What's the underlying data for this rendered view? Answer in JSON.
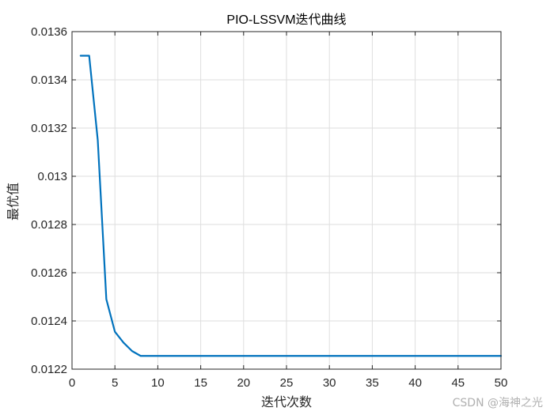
{
  "chart_data": {
    "type": "line",
    "title": "PIO-LSSVM迭代曲线",
    "xlabel": "迭代次数",
    "ylabel": "最优值",
    "xlim": [
      0,
      50
    ],
    "ylim": [
      0.0122,
      0.0136
    ],
    "xticks": [
      "0",
      "5",
      "10",
      "15",
      "20",
      "25",
      "30",
      "35",
      "40",
      "45",
      "50"
    ],
    "yticks": [
      "0.0122",
      "0.0124",
      "0.0126",
      "0.0128",
      "0.013",
      "0.0132",
      "0.0134",
      "0.0136"
    ],
    "grid": true,
    "series": [
      {
        "color": "#0072bd",
        "x": [
          1,
          2,
          3,
          4,
          5,
          6,
          7,
          8,
          9,
          10,
          15,
          20,
          25,
          30,
          35,
          40,
          45,
          50
        ],
        "y": [
          0.0135,
          0.0135,
          0.01315,
          0.01249,
          0.012355,
          0.01231,
          0.012275,
          0.012255,
          0.012255,
          0.012255,
          0.012255,
          0.012255,
          0.012255,
          0.012255,
          0.012255,
          0.012255,
          0.012255,
          0.012255
        ]
      }
    ]
  },
  "watermark": "CSDN @海神之光"
}
